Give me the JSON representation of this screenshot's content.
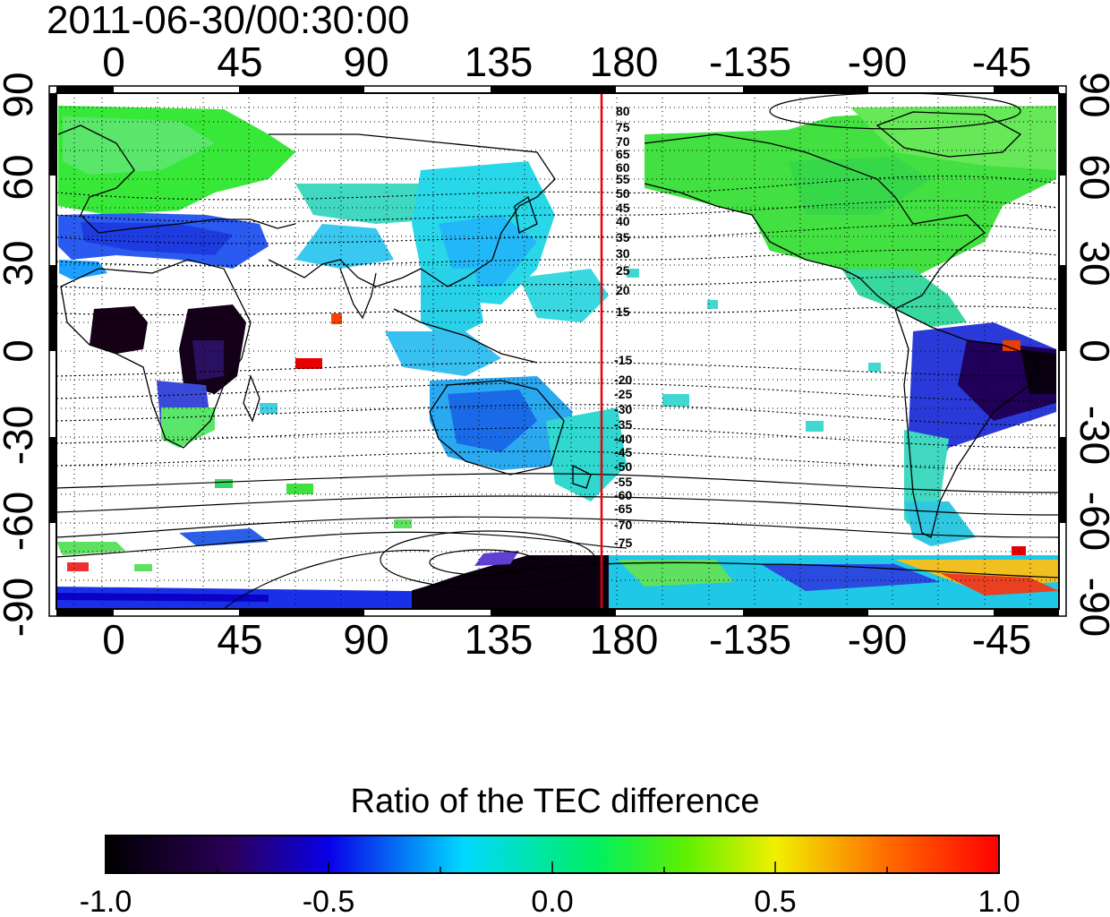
{
  "timestamp": "2011-06-30/00:30:00",
  "map": {
    "top_axis_labels": [
      "0",
      "45",
      "90",
      "135",
      "180",
      "-135",
      "-90",
      "-45"
    ],
    "bottom_axis_labels": [
      "0",
      "45",
      "90",
      "135",
      "180",
      "-135",
      "-90",
      "-45"
    ],
    "left_axis_labels": [
      "90",
      "60",
      "30",
      "0",
      "-30",
      "-60",
      "-90"
    ],
    "right_axis_labels": [
      "90",
      "60",
      "30",
      "0",
      "-30",
      "-60",
      "-90"
    ],
    "contour_labels_north": [
      "80",
      "75",
      "70",
      "65",
      "60",
      "55",
      "50",
      "45",
      "40",
      "35",
      "30",
      "25",
      "20",
      "15"
    ],
    "contour_labels_south": [
      "-15",
      "-20",
      "-25",
      "-30",
      "-35",
      "-40",
      "-45",
      "-50",
      "-55",
      "-60",
      "-65",
      "-70",
      "-75"
    ],
    "terminator_color": "#e8000b"
  },
  "colorbar": {
    "title": "Ratio of the TEC difference",
    "tick_labels": [
      "-1.0",
      "-0.5",
      "0.0",
      "0.5",
      "1.0"
    ],
    "range": [
      -1.0,
      1.0
    ]
  }
}
